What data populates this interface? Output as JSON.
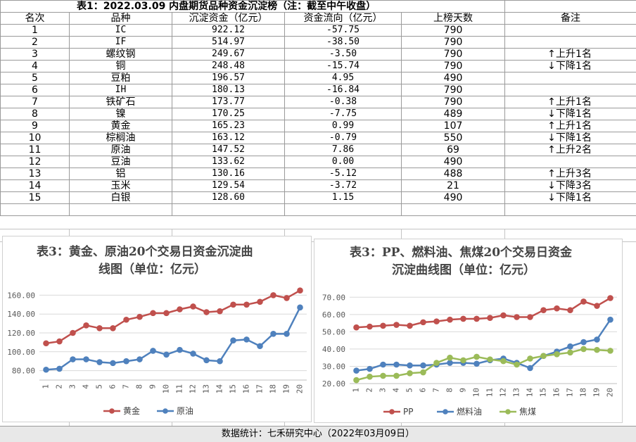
{
  "table": {
    "title": "表1：2022.03.09 内盘期货品种资金沉淀榜（注：截至中午收盘）",
    "headers": [
      "名次",
      "品种",
      "沉淀资金（亿元）",
      "资金流向（亿元）",
      "上榜天数",
      "备注"
    ],
    "rows": [
      {
        "rank": "1",
        "name": "IC",
        "amount": "922.12",
        "flow": "-57.75",
        "days": "790",
        "note_arrow": "",
        "note": ""
      },
      {
        "rank": "2",
        "name": "IF",
        "amount": "514.97",
        "flow": "-38.50",
        "days": "790",
        "note_arrow": "",
        "note": ""
      },
      {
        "rank": "3",
        "name": "螺纹钢",
        "amount": "249.67",
        "flow": "-3.50",
        "days": "790",
        "note_arrow": "↑",
        "note": "上升1名"
      },
      {
        "rank": "4",
        "name": "铜",
        "amount": "248.48",
        "flow": "-15.74",
        "days": "790",
        "note_arrow": "↓",
        "note": "下降1名"
      },
      {
        "rank": "5",
        "name": "豆粕",
        "amount": "196.57",
        "flow": "4.95",
        "days": "490",
        "note_arrow": "",
        "note": ""
      },
      {
        "rank": "6",
        "name": "IH",
        "amount": "180.13",
        "flow": "-16.84",
        "days": "790",
        "note_arrow": "",
        "note": ""
      },
      {
        "rank": "7",
        "name": "铁矿石",
        "amount": "173.77",
        "flow": "-0.38",
        "days": "790",
        "note_arrow": "↑",
        "note": "上升1名"
      },
      {
        "rank": "8",
        "name": "镍",
        "amount": "170.25",
        "flow": "-7.75",
        "days": "489",
        "note_arrow": "↓",
        "note": "下降1名"
      },
      {
        "rank": "9",
        "name": "黄金",
        "amount": "165.23",
        "flow": "0.99",
        "days": "107",
        "note_arrow": "↑",
        "note": "上升1名"
      },
      {
        "rank": "10",
        "name": "棕榈油",
        "amount": "163.12",
        "flow": "-0.79",
        "days": "550",
        "note_arrow": "↓",
        "note": "下降1名"
      },
      {
        "rank": "11",
        "name": "原油",
        "amount": "147.52",
        "flow": "7.86",
        "days": "69",
        "note_arrow": "↑",
        "note": "上升2名"
      },
      {
        "rank": "12",
        "name": "豆油",
        "amount": "133.62",
        "flow": "0.00",
        "days": "490",
        "note_arrow": "",
        "note": ""
      },
      {
        "rank": "13",
        "name": "铝",
        "amount": "130.16",
        "flow": "-5.12",
        "days": "488",
        "note_arrow": "↑",
        "note": "上升3名"
      },
      {
        "rank": "14",
        "name": "玉米",
        "amount": "129.54",
        "flow": "-3.72",
        "days": "21",
        "note_arrow": "↓",
        "note": "下降3名"
      },
      {
        "rank": "15",
        "name": "白银",
        "amount": "128.60",
        "flow": "1.15",
        "days": "490",
        "note_arrow": "↓",
        "note": "下降1名"
      }
    ]
  },
  "footer": "数据统计：七禾研究中心（2022年03月09日）",
  "chart_data": [
    {
      "type": "line",
      "title": "表3：黄金、原油20个交易日资金沉淀曲线图（单位：亿元）",
      "title_lines": [
        "表3：黄金、原油20个交易日资金沉淀曲",
        "线图（单位：亿元）"
      ],
      "x": [
        "1",
        "2",
        "3",
        "4",
        "5",
        "6",
        "7",
        "8",
        "9",
        "10",
        "11",
        "12",
        "13",
        "14",
        "15",
        "16",
        "17",
        "18",
        "19",
        "20"
      ],
      "ylim": [
        70,
        170
      ],
      "yticks": [
        "80.00",
        "100.00",
        "120.00",
        "140.00",
        "160.00"
      ],
      "ytick_values": [
        80,
        100,
        120,
        140,
        160
      ],
      "legend": "bottom",
      "grid": true,
      "series": [
        {
          "name": "黄金",
          "color": "#c0504d",
          "values": [
            109,
            111,
            120,
            128,
            125,
            125,
            134,
            137,
            141,
            141,
            145,
            148,
            142,
            143,
            150,
            150,
            153,
            160,
            157,
            165
          ]
        },
        {
          "name": "原油",
          "color": "#4f81bd",
          "values": [
            81,
            82,
            92,
            92,
            89,
            88,
            90,
            92,
            101,
            97,
            102,
            98,
            91,
            90,
            112,
            113,
            106,
            119,
            119,
            147
          ]
        }
      ]
    },
    {
      "type": "line",
      "title": "表3：PP、燃料油、焦煤20个交易日资金沉淀曲线图（单位：亿元）",
      "title_lines": [
        "表3：PP、燃料油、焦煤20个交易日资金",
        "沉淀曲线图（单位：亿元）"
      ],
      "x": [
        "1",
        "2",
        "3",
        "4",
        "5",
        "6",
        "7",
        "8",
        "9",
        "10",
        "11",
        "12",
        "13",
        "14",
        "15",
        "16",
        "17",
        "18",
        "19",
        "20"
      ],
      "ylim": [
        20,
        75
      ],
      "yticks": [
        "20.00",
        "30.00",
        "40.00",
        "50.00",
        "60.00",
        "70.00"
      ],
      "ytick_values": [
        20,
        30,
        40,
        50,
        60,
        70
      ],
      "legend": "bottom",
      "grid": true,
      "series": [
        {
          "name": "PP",
          "color": "#c0504d",
          "values": [
            52.5,
            53,
            53.5,
            54,
            53.5,
            55.5,
            56,
            57,
            57.5,
            57.5,
            58,
            59.5,
            58.5,
            58.5,
            62.5,
            63.5,
            62.5,
            67.5,
            65,
            69.5
          ]
        },
        {
          "name": "燃料油",
          "color": "#4f81bd",
          "values": [
            27.5,
            28.5,
            31,
            31,
            30.5,
            30.5,
            31,
            32,
            32,
            31.5,
            33.5,
            34.5,
            32,
            29,
            36,
            38.5,
            41.5,
            44,
            45.5,
            57
          ]
        },
        {
          "name": "焦煤",
          "color": "#9bbb59",
          "values": [
            22,
            24,
            24.5,
            24.5,
            26,
            26.5,
            32,
            35,
            33.5,
            35.5,
            34,
            33,
            31,
            34.5,
            36,
            37,
            38,
            40,
            39.5,
            39
          ]
        }
      ]
    }
  ]
}
